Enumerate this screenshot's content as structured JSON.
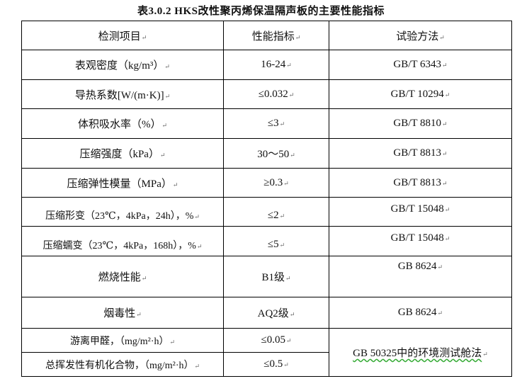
{
  "title": "表3.0.2 HKS改性聚丙烯保温隔声板的主要性能指标",
  "table": {
    "headers": [
      "检测项目",
      "性能指标",
      "试验方法"
    ],
    "rows": [
      {
        "item": "表观密度（kg/m³）",
        "value": "16-24",
        "method": "GB/T 6343"
      },
      {
        "item": "导热系数[W/(m·K)]",
        "value": "≤0.032",
        "method": "GB/T 10294"
      },
      {
        "item": "体积吸水率（%）",
        "value": "≤3",
        "method": "GB/T 8810"
      },
      {
        "item": "压缩强度（kPa）",
        "value": "30～50",
        "method": "GB/T 8813"
      },
      {
        "item": "压缩弹性模量（MPa）",
        "value": "≥0.3",
        "method": "GB/T 8813"
      },
      {
        "item": "压缩形变（23℃，4kPa，24h），%",
        "value": "≤2",
        "method": "GB/T 15048"
      },
      {
        "item": "压缩蠕变（23℃，4kPa，168h），%",
        "value": "≤5",
        "method": "GB/T 15048"
      },
      {
        "item": "燃烧性能",
        "value": "B1级",
        "method": "GB 8624"
      },
      {
        "item": "烟毒性",
        "value": "AQ2级",
        "method": "GB 8624"
      },
      {
        "item": "游离甲醛，（mg/m²·h）",
        "value": "≤0.05",
        "method": "GB 50325中的环境测试舱法"
      },
      {
        "item": "总挥发性有机化合物，（mg/m²·h）",
        "value": "≤0.5"
      }
    ]
  }
}
